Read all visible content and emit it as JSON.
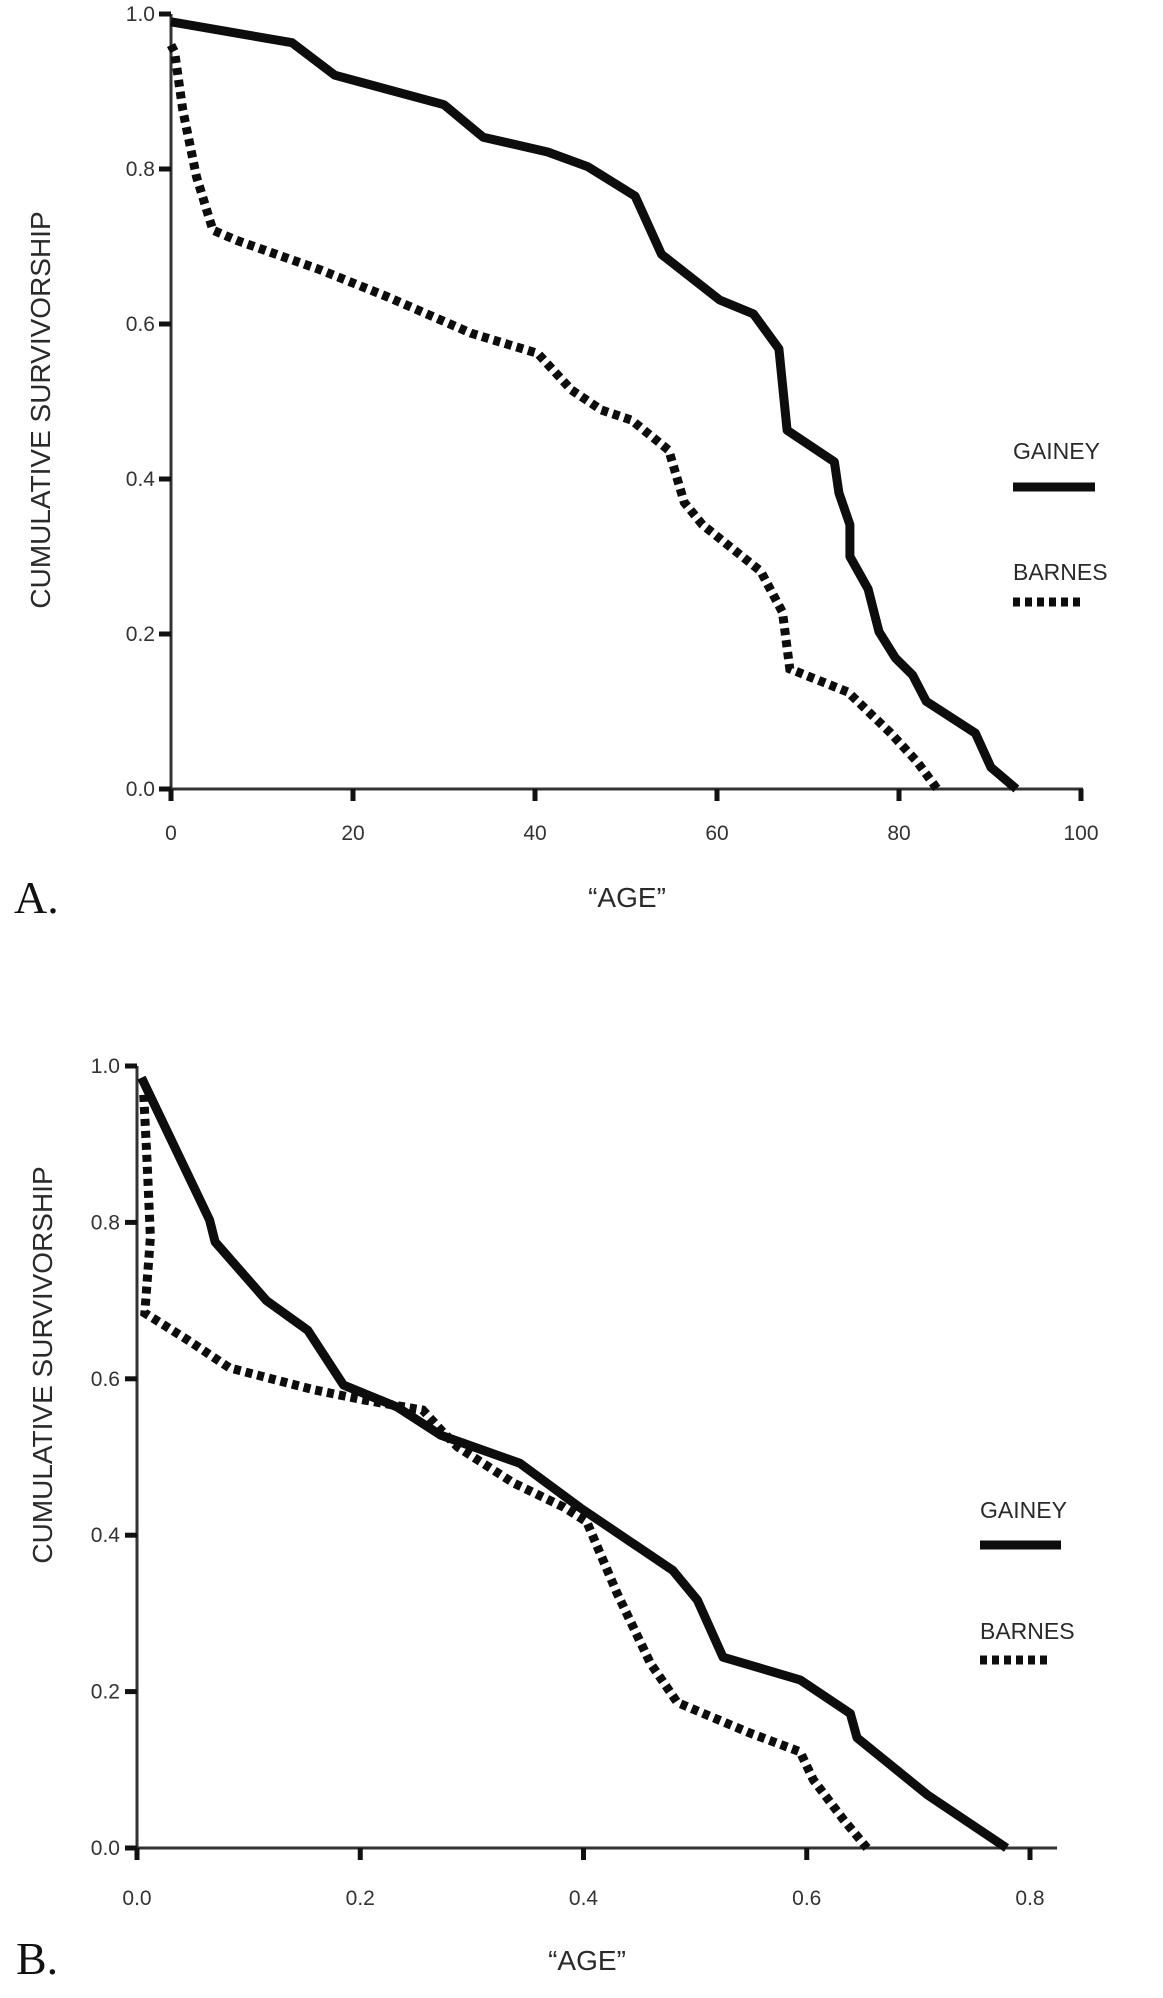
{
  "chart_data": [
    {
      "type": "line",
      "panel": "A.",
      "title": "",
      "xlabel": "“AGE”",
      "ylabel": "CUMULATIVE SURVIVORSHIP",
      "xlim": [
        0,
        100
      ],
      "ylim": [
        0.0,
        1.0
      ],
      "xticks": [
        "0",
        "20",
        "40",
        "60",
        "80",
        "100"
      ],
      "xtick_values": [
        0,
        20,
        40,
        60,
        80,
        100
      ],
      "yticks": [
        "0.0",
        "0.2",
        "0.4",
        "0.6",
        "0.8",
        "1.0"
      ],
      "ytick_values": [
        0.0,
        0.2,
        0.4,
        0.6,
        0.8,
        1.0
      ],
      "grid": false,
      "legend_position": "right",
      "series": [
        {
          "name": "GAINEY",
          "style": "solid",
          "x": [
            0,
            13.3,
            18,
            30,
            34.3,
            41.4,
            45.8,
            51,
            53.9,
            60.3,
            64,
            66.8,
            67.7,
            72.9,
            73.4,
            74.6,
            74.6,
            76.6,
            77.8,
            79.6,
            81.5,
            83,
            88.4,
            90.1,
            92.9
          ],
          "y": [
            0.99,
            0.963,
            0.921,
            0.883,
            0.841,
            0.822,
            0.803,
            0.765,
            0.69,
            0.631,
            0.613,
            0.568,
            0.463,
            0.422,
            0.382,
            0.341,
            0.3,
            0.258,
            0.203,
            0.169,
            0.147,
            0.113,
            0.072,
            0.028,
            0.0
          ]
        },
        {
          "name": "BARNES",
          "style": "dotted",
          "x": [
            0,
            0.4,
            1.3,
            2.8,
            4.6,
            7.2,
            16.4,
            23.8,
            33,
            40.3,
            44,
            47.3,
            50.6,
            54.7,
            56.4,
            58.4,
            64.8,
            67.2,
            68,
            74.4,
            79.1,
            82,
            84.2
          ],
          "y": [
            0.96,
            0.951,
            0.876,
            0.79,
            0.721,
            0.708,
            0.67,
            0.635,
            0.588,
            0.562,
            0.515,
            0.489,
            0.476,
            0.437,
            0.37,
            0.341,
            0.281,
            0.228,
            0.155,
            0.125,
            0.072,
            0.035,
            0.0
          ]
        }
      ]
    },
    {
      "type": "line",
      "panel": "B.",
      "title": "",
      "xlabel": "“AGE”",
      "ylabel": "CUMULATIVE SURVIVORSHIP",
      "xlim": [
        0.0,
        0.8
      ],
      "ylim": [
        0.0,
        1.0
      ],
      "xticks": [
        "0.0",
        "0.2",
        "0.4",
        "0.6",
        "0.8"
      ],
      "xtick_values": [
        0.0,
        0.2,
        0.4,
        0.6,
        0.8
      ],
      "yticks": [
        "0.0",
        "0.2",
        "0.4",
        "0.6",
        "0.8",
        "1.0"
      ],
      "ytick_values": [
        0.0,
        0.2,
        0.4,
        0.6,
        0.8,
        1.0
      ],
      "grid": false,
      "legend_position": "right",
      "series": [
        {
          "name": "GAINEY",
          "style": "solid",
          "x": [
            0.004,
            0.065,
            0.07,
            0.116,
            0.153,
            0.185,
            0.233,
            0.272,
            0.343,
            0.397,
            0.48,
            0.502,
            0.525,
            0.594,
            0.639,
            0.645,
            0.708,
            0.779
          ],
          "y": [
            0.985,
            0.803,
            0.775,
            0.7,
            0.662,
            0.592,
            0.564,
            0.528,
            0.492,
            0.435,
            0.355,
            0.317,
            0.244,
            0.215,
            0.172,
            0.141,
            0.068,
            0.0
          ]
        },
        {
          "name": "BARNES",
          "style": "dotted",
          "x": [
            0.006,
            0.009,
            0.012,
            0.007,
            0.045,
            0.083,
            0.158,
            0.203,
            0.256,
            0.272,
            0.287,
            0.337,
            0.382,
            0.403,
            0.43,
            0.46,
            0.484,
            0.549,
            0.594,
            0.606,
            0.633,
            0.654
          ],
          "y": [
            0.963,
            0.88,
            0.781,
            0.684,
            0.65,
            0.614,
            0.586,
            0.573,
            0.56,
            0.535,
            0.513,
            0.467,
            0.436,
            0.417,
            0.326,
            0.236,
            0.186,
            0.147,
            0.123,
            0.087,
            0.036,
            0.0
          ]
        }
      ]
    }
  ]
}
